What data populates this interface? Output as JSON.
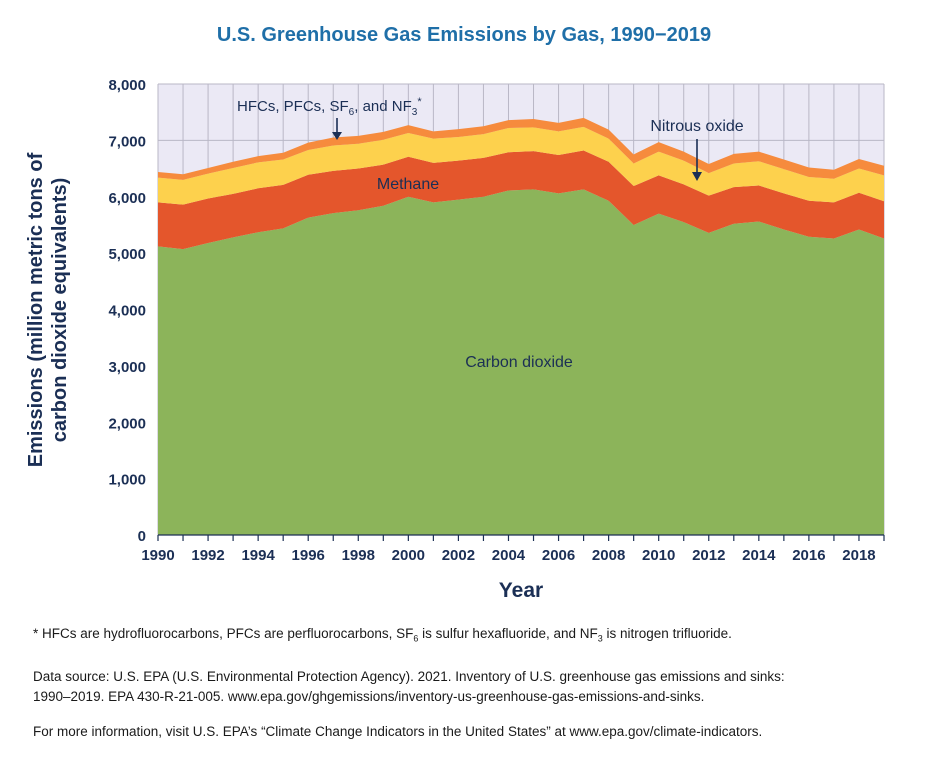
{
  "chart_data": {
    "type": "area",
    "stacked": true,
    "title": "U.S. Greenhouse Gas Emissions by Gas, 1990−2019",
    "xlabel": "Year",
    "ylabel_line1": "Emissions (million metric tons of",
    "ylabel_line2": "carbon dioxide equivalents)",
    "xlim": [
      1990,
      2019
    ],
    "ylim": [
      0,
      8000
    ],
    "grid": true,
    "x": [
      1990,
      1991,
      1992,
      1993,
      1994,
      1995,
      1996,
      1997,
      1998,
      1999,
      2000,
      2001,
      2002,
      2003,
      2004,
      2005,
      2006,
      2007,
      2008,
      2009,
      2010,
      2011,
      2012,
      2013,
      2014,
      2015,
      2016,
      2017,
      2018,
      2019
    ],
    "x_ticks": [
      1990,
      1992,
      1994,
      1996,
      1998,
      2000,
      2002,
      2004,
      2006,
      2008,
      2010,
      2012,
      2014,
      2016,
      2018
    ],
    "y_ticks": [
      0,
      1000,
      2000,
      3000,
      4000,
      5000,
      6000,
      7000,
      8000
    ],
    "y_tick_labels": [
      "0",
      "1,000",
      "2,000",
      "3,000",
      "4,000",
      "5,000",
      "6,000",
      "7,000",
      "8,000"
    ],
    "series": [
      {
        "name": "Carbon dioxide",
        "color": "#8cb45a",
        "values": [
          5120,
          5070,
          5180,
          5280,
          5370,
          5440,
          5630,
          5710,
          5760,
          5840,
          6000,
          5900,
          5950,
          6000,
          6110,
          6130,
          6060,
          6130,
          5930,
          5500,
          5700,
          5550,
          5360,
          5520,
          5560,
          5420,
          5290,
          5260,
          5420,
          5260
        ]
      },
      {
        "name": "Methane",
        "color": "#e4562c",
        "values": [
          780,
          790,
          790,
          770,
          780,
          770,
          760,
          750,
          740,
          730,
          710,
          700,
          690,
          690,
          680,
          680,
          680,
          690,
          690,
          690,
          680,
          670,
          660,
          650,
          640,
          640,
          640,
          640,
          650,
          660
        ]
      },
      {
        "name": "Nitrous oxide",
        "color": "#fdd14d",
        "values": [
          440,
          440,
          440,
          460,
          460,
          450,
          440,
          450,
          440,
          440,
          420,
          430,
          420,
          420,
          430,
          420,
          420,
          420,
          410,
          400,
          420,
          420,
          400,
          420,
          430,
          430,
          420,
          420,
          430,
          460
        ]
      },
      {
        "name": "HFCs, PFCs, SF6, and NF3",
        "color": "#f68b3d",
        "values": [
          100,
          100,
          100,
          110,
          110,
          120,
          130,
          140,
          140,
          140,
          140,
          130,
          140,
          140,
          140,
          150,
          150,
          160,
          160,
          160,
          170,
          160,
          160,
          170,
          170,
          170,
          170,
          160,
          170,
          170
        ]
      }
    ],
    "annotations": {
      "hfc_label": "HFCs, PFCs, SF",
      "hfc_sub": "6",
      "hfc_mid": ", and NF",
      "hfc_sub2": "3",
      "hfc_star": "*",
      "methane_label": "Methane",
      "nitrous_label": "Nitrous oxide",
      "co2_label": "Carbon dioxide"
    },
    "plot_background": "#ebe9f5",
    "grid_color": "#b9b7c6",
    "text_color": "#1b2f55"
  },
  "notes": {
    "footnote_a": "* HFCs are hydrofluorocarbons, PFCs are perfluorocarbons, SF",
    "footnote_sub1": "6",
    "footnote_b": " is sulfur hexafluoride, and NF",
    "footnote_sub2": "3",
    "footnote_c": " is nitrogen trifluoride.",
    "source_line1": "Data source: U.S. EPA (U.S. Environmental Protection Agency). 2021. Inventory of U.S. greenhouse gas emissions and sinks:",
    "source_line2": "1990–2019. EPA 430-R-21-005. www.epa.gov/ghgemissions/inventory-us-greenhouse-gas-emissions-and-sinks.",
    "more_info": "For more information, visit U.S. EPA’s “Climate Change Indicators in the United States” at www.epa.gov/climate-indicators."
  }
}
